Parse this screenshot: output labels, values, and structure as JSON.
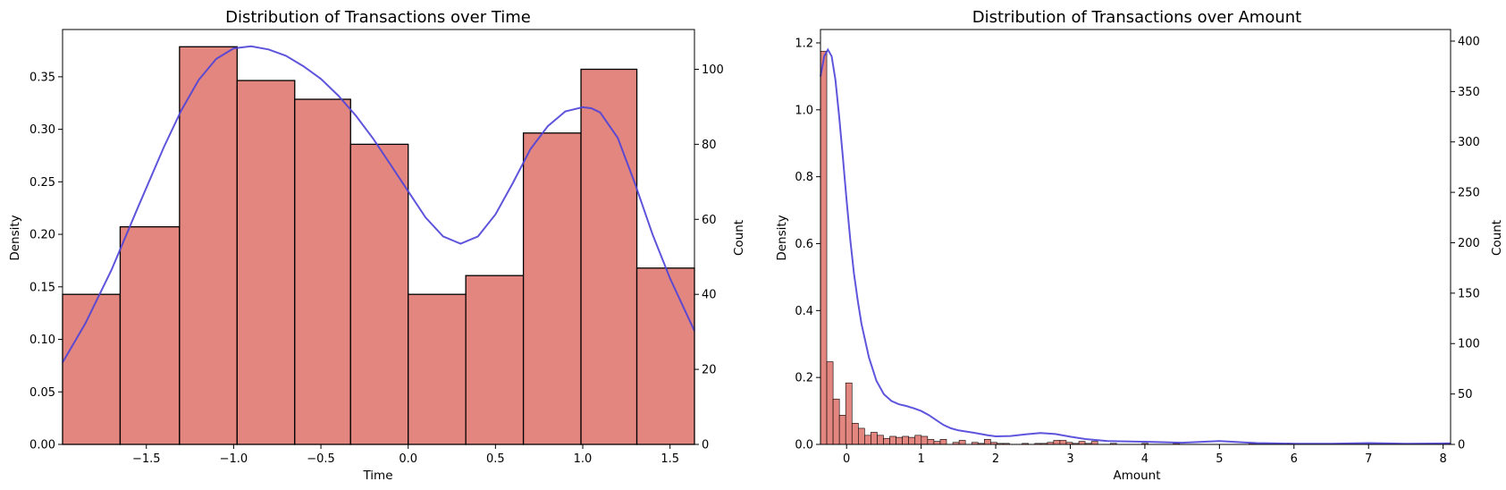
{
  "colors": {
    "bar_fill": "#e3867f",
    "bar_edge": "#000000",
    "kde": "#4c43d8",
    "axis": "#000000",
    "background": "#ffffff"
  },
  "chart_data": [
    {
      "type": "bar",
      "title": "Distribution of Transactions over Time",
      "xlabel": "Time",
      "ylabel": "Density",
      "ylabel_right": "Count",
      "xlim": [
        -1.98,
        1.64
      ],
      "ylim": [
        0,
        0.395
      ],
      "ylim_right": [
        0,
        110.6
      ],
      "xticks": [
        -1.5,
        -1.0,
        -0.5,
        0.0,
        0.5,
        1.0,
        1.5
      ],
      "xtick_labels": [
        "−1.5",
        "−1.0",
        "−0.5",
        "0.0",
        "0.5",
        "1.0",
        "1.5"
      ],
      "yticks": [
        0.0,
        0.05,
        0.1,
        0.15,
        0.2,
        0.25,
        0.3,
        0.35
      ],
      "ytick_labels": [
        "0.00",
        "0.05",
        "0.10",
        "0.15",
        "0.20",
        "0.25",
        "0.30",
        "0.35"
      ],
      "yticks_right": [
        0,
        20,
        40,
        60,
        80,
        100
      ],
      "ytick_labels_right": [
        "0",
        "20",
        "40",
        "60",
        "80",
        "100"
      ],
      "bin_edges": [
        -1.98,
        -1.65,
        -1.31,
        -0.98,
        -0.65,
        -0.33,
        0.0,
        0.33,
        0.66,
        0.99,
        1.31,
        1.64
      ],
      "counts": [
        40,
        58,
        106,
        97,
        92,
        80,
        40,
        45,
        83,
        100,
        47
      ],
      "kde": {
        "x": [
          -1.98,
          -1.85,
          -1.7,
          -1.55,
          -1.4,
          -1.3,
          -1.2,
          -1.1,
          -1.0,
          -0.9,
          -0.8,
          -0.7,
          -0.6,
          -0.5,
          -0.4,
          -0.3,
          -0.2,
          -0.1,
          0.0,
          0.1,
          0.2,
          0.3,
          0.4,
          0.5,
          0.6,
          0.7,
          0.8,
          0.9,
          1.0,
          1.05,
          1.1,
          1.2,
          1.3,
          1.4,
          1.5,
          1.64
        ],
        "y": [
          0.078,
          0.115,
          0.166,
          0.225,
          0.283,
          0.318,
          0.347,
          0.367,
          0.377,
          0.379,
          0.376,
          0.37,
          0.36,
          0.348,
          0.332,
          0.313,
          0.291,
          0.266,
          0.241,
          0.216,
          0.198,
          0.191,
          0.198,
          0.219,
          0.249,
          0.281,
          0.303,
          0.317,
          0.321,
          0.32,
          0.316,
          0.292,
          0.248,
          0.2,
          0.158,
          0.108
        ]
      },
      "grid": false,
      "legend": "none"
    },
    {
      "type": "bar",
      "title": "Distribution of Transactions over Amount",
      "xlabel": "Amount",
      "ylabel": "Density",
      "ylabel_right": "Count",
      "xlim": [
        -0.35,
        8.1
      ],
      "ylim": [
        0,
        1.24
      ],
      "ylim_right": [
        0,
        411.5
      ],
      "xticks": [
        0,
        1,
        2,
        3,
        4,
        5,
        6,
        7,
        8
      ],
      "xtick_labels": [
        "0",
        "1",
        "2",
        "3",
        "4",
        "5",
        "6",
        "7",
        "8"
      ],
      "yticks": [
        0.0,
        0.2,
        0.4,
        0.6,
        0.8,
        1.0,
        1.2
      ],
      "ytick_labels": [
        "0.0",
        "0.2",
        "0.4",
        "0.6",
        "0.8",
        "1.0",
        "1.2"
      ],
      "yticks_right": [
        0,
        50,
        100,
        150,
        200,
        250,
        300,
        350,
        400
      ],
      "ytick_labels_right": [
        "0",
        "50",
        "100",
        "150",
        "200",
        "250",
        "300",
        "350",
        "400"
      ],
      "bin_start": -0.35,
      "bin_width": 0.0845,
      "counts": [
        390,
        82,
        45,
        29,
        61,
        21,
        16,
        9,
        12,
        9,
        6,
        8,
        7,
        8,
        7,
        9,
        8,
        5,
        3,
        5,
        0,
        2,
        4,
        0,
        2,
        1,
        5,
        2,
        1,
        1,
        0,
        0,
        1,
        0,
        1,
        1,
        2,
        4,
        4,
        2,
        1,
        3,
        1,
        3,
        0,
        0,
        1,
        0,
        0,
        0,
        0,
        1,
        0,
        0,
        0,
        0,
        1,
        0,
        0,
        0,
        0,
        0,
        0,
        0,
        0,
        0,
        0,
        0,
        1,
        0,
        0,
        0,
        0,
        0,
        1,
        0,
        0,
        0,
        0,
        0,
        0,
        0,
        0,
        0,
        0,
        0,
        0,
        0,
        0,
        0,
        0,
        0,
        0,
        0,
        0,
        0,
        0,
        0,
        0,
        1
      ],
      "kde": {
        "x": [
          -0.35,
          -0.3,
          -0.25,
          -0.2,
          -0.15,
          -0.1,
          -0.05,
          0.0,
          0.05,
          0.1,
          0.15,
          0.2,
          0.3,
          0.4,
          0.5,
          0.6,
          0.7,
          0.8,
          0.9,
          1.0,
          1.1,
          1.2,
          1.3,
          1.4,
          1.5,
          1.7,
          1.9,
          2.0,
          2.2,
          2.4,
          2.6,
          2.8,
          3.0,
          3.2,
          3.5,
          4.0,
          4.5,
          5.0,
          5.5,
          6.0,
          6.5,
          7.0,
          7.5,
          8.1
        ],
        "y": [
          1.1,
          1.16,
          1.18,
          1.16,
          1.09,
          0.98,
          0.86,
          0.73,
          0.61,
          0.51,
          0.43,
          0.36,
          0.26,
          0.19,
          0.15,
          0.13,
          0.12,
          0.115,
          0.108,
          0.1,
          0.088,
          0.073,
          0.058,
          0.048,
          0.042,
          0.035,
          0.027,
          0.024,
          0.025,
          0.03,
          0.034,
          0.031,
          0.023,
          0.016,
          0.01,
          0.008,
          0.005,
          0.01,
          0.004,
          0.002,
          0.002,
          0.004,
          0.002,
          0.003
        ]
      },
      "grid": false,
      "legend": "none"
    }
  ]
}
